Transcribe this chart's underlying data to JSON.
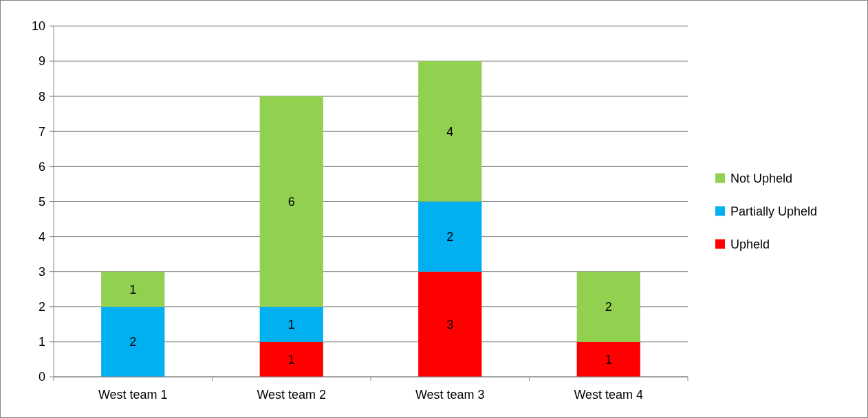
{
  "chart_data": {
    "type": "bar",
    "stacked": true,
    "categories": [
      "West team 1",
      "West team 2",
      "West team 3",
      "West team 4"
    ],
    "series": [
      {
        "name": "Upheld",
        "color": "#ff0000",
        "values": [
          null,
          1,
          3,
          1
        ]
      },
      {
        "name": "Partially Upheld",
        "color": "#00b0f0",
        "values": [
          2,
          1,
          2,
          null
        ]
      },
      {
        "name": "Not Upheld",
        "color": "#92d050",
        "values": [
          1,
          6,
          4,
          2
        ]
      }
    ],
    "ylim": [
      0,
      10
    ],
    "yticks": [
      0,
      1,
      2,
      3,
      4,
      5,
      6,
      7,
      8,
      9,
      10
    ],
    "grid": "y",
    "legend": "right",
    "data_labels": true
  }
}
